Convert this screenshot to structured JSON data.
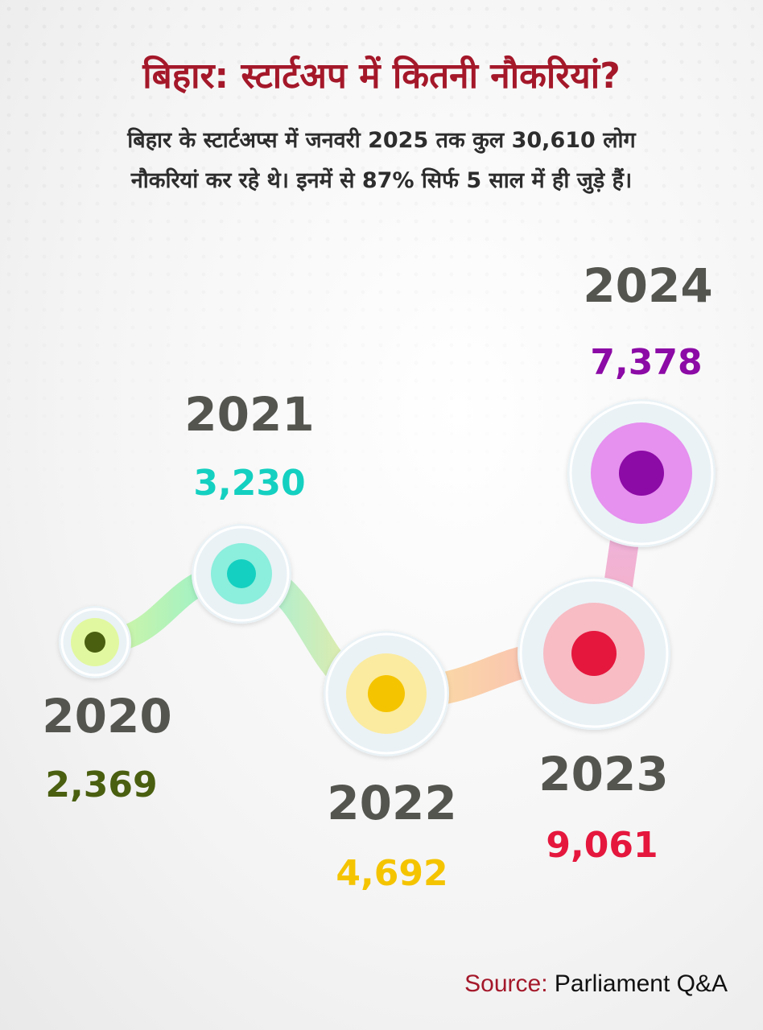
{
  "title": "बिहार: स्टार्टअप में कितनी नौकरियां?",
  "subtitle_line1": "बिहार के स्टार्टअप्स में जनवरी 2025 तक कुल 30,610 लोग",
  "subtitle_line2": "नौकरियां कर रहे थे। इनमें से 87% सिर्फ 5 साल में ही जुड़े हैं।",
  "source_label": "Source:",
  "source_value": "Parliament Q&A",
  "chart_data": {
    "type": "line",
    "title": "बिहार: स्टार्टअप में कितनी नौकरियां?",
    "x": [
      "2020",
      "2021",
      "2022",
      "2023",
      "2024"
    ],
    "values": [
      2369,
      3230,
      4692,
      9061,
      7378
    ],
    "value_labels": [
      "2,369",
      "3,230",
      "4,692",
      "9,061",
      "7,378"
    ],
    "colors": {
      "2020": "#4a5f10",
      "2021": "#14d0c0",
      "2022": "#f5c400",
      "2023": "#e5173d",
      "2024": "#8c0aa6"
    },
    "ring_colors": {
      "2020": "#e2f8a0",
      "2021": "#8ceedd",
      "2022": "#fbeba0",
      "2023": "#f7bcc4",
      "2024": "#e690ef"
    }
  }
}
